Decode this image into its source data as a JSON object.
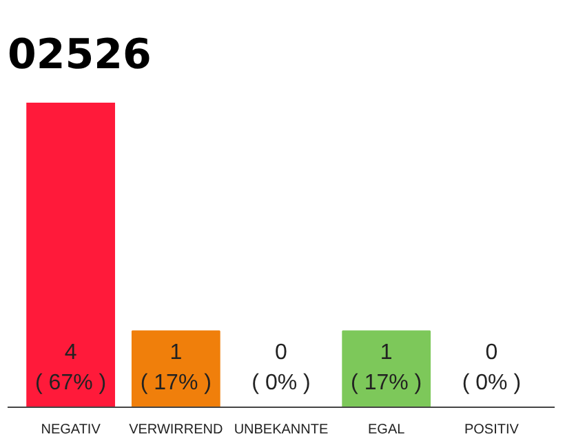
{
  "chart_data": {
    "type": "bar",
    "title": "02526",
    "categories": [
      "NEGATIV",
      "VERWIRREND",
      "UNBEKANNTE",
      "EGAL",
      "POSITIV"
    ],
    "values": [
      4,
      1,
      0,
      1,
      0
    ],
    "colors": [
      "#ff1a3a",
      "#f07f0b",
      null,
      "#7dc85a",
      null
    ],
    "value_labels": [
      "4\n( 67% )",
      "1\n( 17% )",
      "0\n( 0% )",
      "1\n( 17% )",
      "0\n( 0% )"
    ],
    "grid": false,
    "tick_labels": "x"
  }
}
